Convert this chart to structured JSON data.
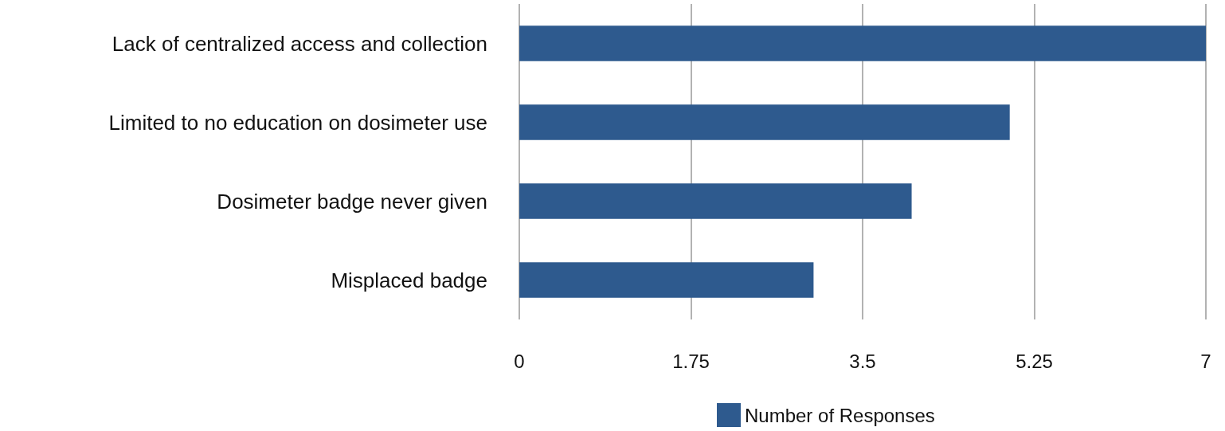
{
  "chart_data": {
    "type": "bar",
    "orientation": "horizontal",
    "categories": [
      "Lack of centralized access and collection",
      "Limited to no education on dosimeter use",
      "Dosimeter badge never given",
      "Misplaced badge"
    ],
    "series": [
      {
        "name": "Number of Responses",
        "color": "#2e5a8e",
        "values": [
          7,
          5,
          4,
          3
        ]
      }
    ],
    "xlim": [
      0,
      7
    ],
    "xticks": [
      0,
      1.75,
      3.5,
      5.25,
      7
    ],
    "grid": "x",
    "legend": "bottom"
  }
}
